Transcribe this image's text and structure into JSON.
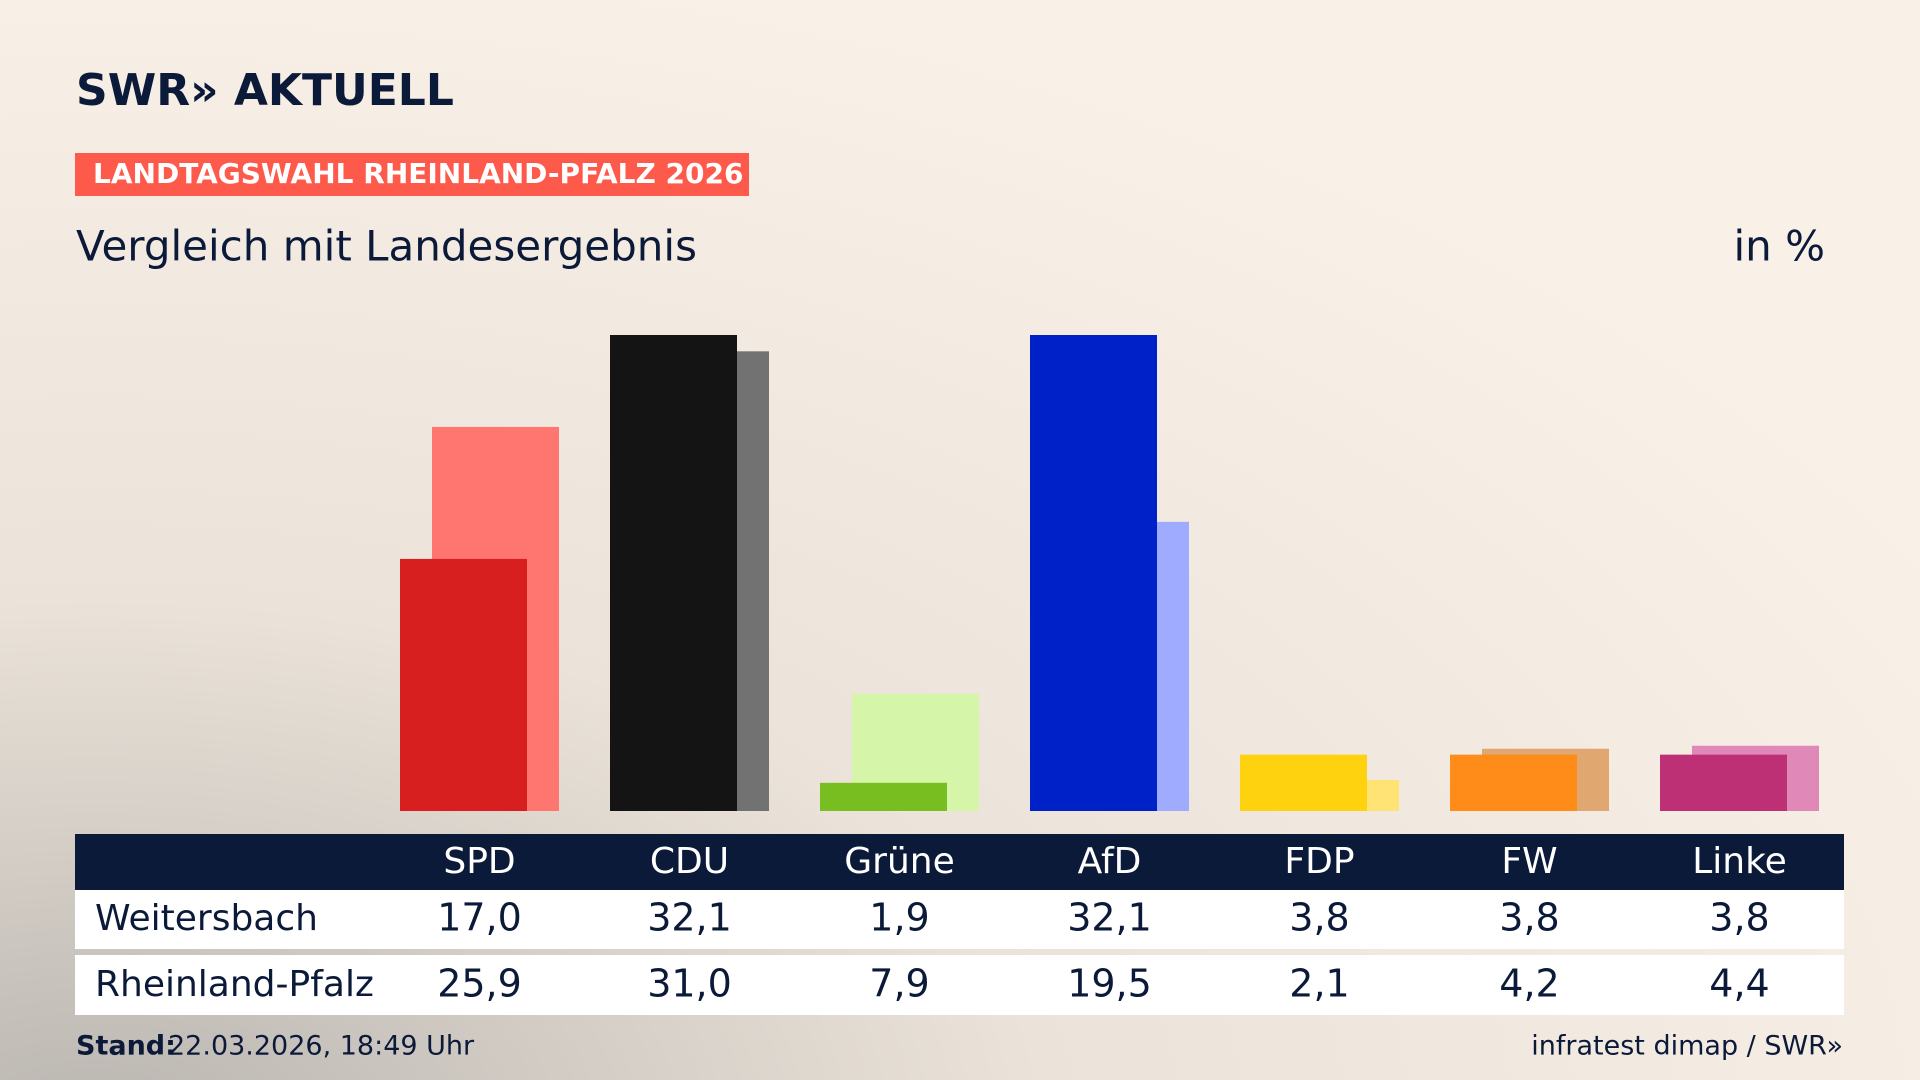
{
  "brand": "SWR» AKTUELL",
  "badge": "LANDTAGSWAHL RHEINLAND-PFALZ 2026",
  "footer": {
    "stand_label": "Stand:",
    "stand_value": "22.03.2026, 18:49 Uhr",
    "source": "infratest dimap / SWR»"
  },
  "chart_data": {
    "type": "bar",
    "title": "Vergleich mit Landesergebnis",
    "unit": "in %",
    "categories": [
      "SPD",
      "CDU",
      "Grüne",
      "AfD",
      "FDP",
      "FW",
      "Linke"
    ],
    "series": [
      {
        "name": "Weitersbach",
        "colors": [
          "#d81f1f",
          "#141414",
          "#78be20",
          "#0021c8",
          "#ffd20f",
          "#ff8c19",
          "#be3075"
        ],
        "values": [
          17.0,
          32.1,
          1.9,
          32.1,
          3.8,
          3.8,
          3.8
        ],
        "value_labels": [
          "17,0",
          "32,1",
          "1,9",
          "32,1",
          "3,8",
          "3,8",
          "3,8"
        ]
      },
      {
        "name": "Rheinland-Pfalz",
        "colors": [
          "#ff7670",
          "#727272",
          "#d5f5a8",
          "#9eabff",
          "#ffe375",
          "#e0a870",
          "#e088b8"
        ],
        "values": [
          25.9,
          31.0,
          7.9,
          19.5,
          2.1,
          4.2,
          4.4
        ],
        "value_labels": [
          "25,9",
          "31,0",
          "7,9",
          "19,5",
          "2,1",
          "4,2",
          "4,4"
        ]
      }
    ]
  }
}
